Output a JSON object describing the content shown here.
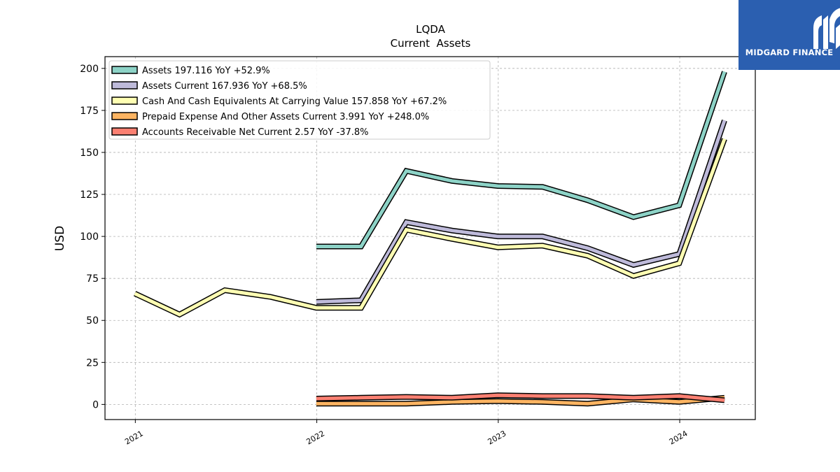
{
  "chart_data": {
    "type": "line",
    "title": "LQDA",
    "subtitle": "Current  Assets",
    "xlabel": "",
    "ylabel": "USD",
    "xlim": [
      "2020-11-01",
      "2024-06-01"
    ],
    "ylim": [
      -9,
      207
    ],
    "xticks": [
      "2021",
      "2022",
      "2023",
      "2024"
    ],
    "yticks": [
      0,
      25,
      50,
      75,
      100,
      125,
      150,
      175,
      200
    ],
    "grid": true,
    "legend_position": "top-left",
    "series": [
      {
        "name": "Assets  197.116 YoY +52.9%",
        "color": "#8dd3c7",
        "points": [
          [
            "2021-12-31",
            94
          ],
          [
            "2022-03-31",
            94
          ],
          [
            "2022-06-30",
            139
          ],
          [
            "2022-09-30",
            133
          ],
          [
            "2022-12-31",
            130
          ],
          [
            "2023-03-31",
            129.5
          ],
          [
            "2023-06-30",
            121.5
          ],
          [
            "2023-09-30",
            111.5
          ],
          [
            "2023-12-31",
            118.5
          ],
          [
            "2024-03-31",
            198
          ]
        ]
      },
      {
        "name": "Assets Current  167.936 YoY +68.5%",
        "color": "#bebada",
        "points": [
          [
            "2021-12-31",
            61
          ],
          [
            "2022-03-31",
            62
          ],
          [
            "2022-06-30",
            108.5
          ],
          [
            "2022-09-30",
            103.5
          ],
          [
            "2022-12-31",
            100
          ],
          [
            "2023-03-31",
            100
          ],
          [
            "2023-06-30",
            93
          ],
          [
            "2023-09-30",
            83
          ],
          [
            "2023-12-31",
            89.5
          ],
          [
            "2024-03-31",
            169
          ]
        ]
      },
      {
        "name": "Cash And Cash Equivalents At Carrying Value  157.858 YoY +67.2%",
        "color": "#ffffb3",
        "points": [
          [
            "2020-12-31",
            66
          ],
          [
            "2021-03-31",
            53.5
          ],
          [
            "2021-06-30",
            68
          ],
          [
            "2021-09-30",
            64
          ],
          [
            "2021-12-31",
            57.5
          ],
          [
            "2022-03-31",
            57.5
          ],
          [
            "2022-06-30",
            104
          ],
          [
            "2022-09-30",
            98.5
          ],
          [
            "2022-12-31",
            93.5
          ],
          [
            "2023-03-31",
            94.5
          ],
          [
            "2023-06-30",
            88.5
          ],
          [
            "2023-09-30",
            76.5
          ],
          [
            "2023-12-31",
            84
          ],
          [
            "2024-03-31",
            158
          ]
        ]
      },
      {
        "name": "Prepaid Expense And Other Assets Current  3.991 YoY +248.0%",
        "color": "#fdb462",
        "points": [
          [
            "2021-12-31",
            0.5
          ],
          [
            "2022-03-31",
            0.5
          ],
          [
            "2022-06-30",
            0.5
          ],
          [
            "2022-09-30",
            1.5
          ],
          [
            "2022-12-31",
            2
          ],
          [
            "2023-03-31",
            1.5
          ],
          [
            "2023-06-30",
            0.5
          ],
          [
            "2023-09-30",
            3
          ],
          [
            "2023-12-31",
            1.5
          ],
          [
            "2024-03-31",
            4
          ]
        ]
      },
      {
        "name": "Accounts Receivable Net Current  2.57 YoY -37.8%",
        "color": "#fb8072",
        "points": [
          [
            "2021-12-31",
            3.5
          ],
          [
            "2022-03-31",
            4
          ],
          [
            "2022-06-30",
            4.5
          ],
          [
            "2022-09-30",
            4
          ],
          [
            "2022-12-31",
            5.5
          ],
          [
            "2023-03-31",
            5
          ],
          [
            "2023-06-30",
            5
          ],
          [
            "2023-09-30",
            4
          ],
          [
            "2023-12-31",
            5
          ],
          [
            "2024-03-31",
            2.5
          ]
        ]
      }
    ]
  },
  "logo": {
    "text": "MIDGARD FINANCE",
    "background": "#2b5fb0"
  }
}
